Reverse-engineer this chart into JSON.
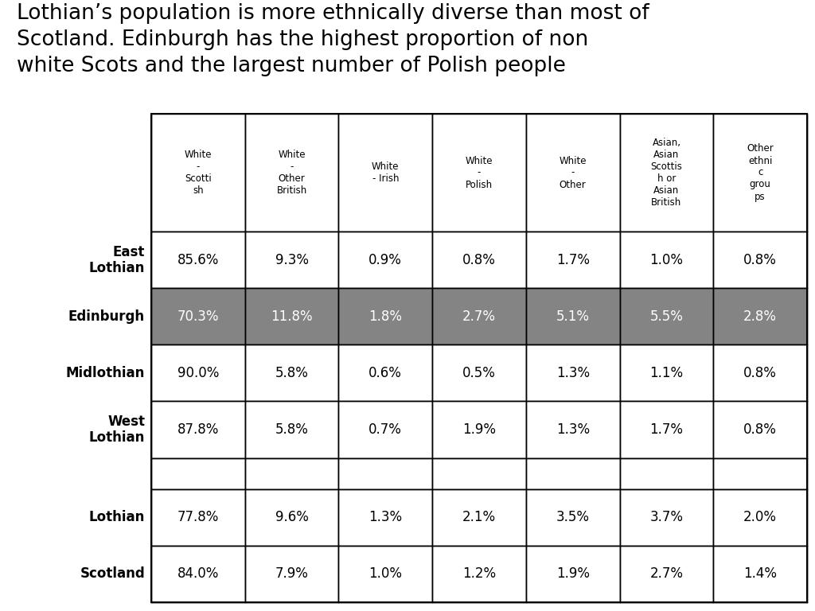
{
  "title": "Lothian’s population is more ethnically diverse than most of\nScotland. Edinburgh has the highest proportion of non\nwhite Scots and the largest number of Polish people",
  "title_bg_color": "#b3b3b3",
  "title_fontsize": 19,
  "col_headers": [
    "White\n-\nScotti\nsh",
    "White\n-\nOther\nBritish",
    "White\n- Irish",
    "White\n-\nPolish",
    "White\n-\nOther",
    "Asian,\nAsian\nScottis\nh or\nAsian\nBritish",
    "Other\nethni\nc\ngrou\nps"
  ],
  "row_labels": [
    "East\nLothian",
    "Edinburgh",
    "Midlothian",
    "West\nLothian",
    "",
    "Lothian",
    "Scotland"
  ],
  "row_label_bold": [
    true,
    true,
    true,
    true,
    false,
    true,
    true
  ],
  "data": [
    [
      "85.6%",
      "9.3%",
      "0.9%",
      "0.8%",
      "1.7%",
      "1.0%",
      "0.8%"
    ],
    [
      "70.3%",
      "11.8%",
      "1.8%",
      "2.7%",
      "5.1%",
      "5.5%",
      "2.8%"
    ],
    [
      "90.0%",
      "5.8%",
      "0.6%",
      "0.5%",
      "1.3%",
      "1.1%",
      "0.8%"
    ],
    [
      "87.8%",
      "5.8%",
      "0.7%",
      "1.9%",
      "1.3%",
      "1.7%",
      "0.8%"
    ],
    [
      "",
      "",
      "",
      "",
      "",
      "",
      ""
    ],
    [
      "77.8%",
      "9.6%",
      "1.3%",
      "2.1%",
      "3.5%",
      "3.7%",
      "2.0%"
    ],
    [
      "84.0%",
      "7.9%",
      "1.0%",
      "1.2%",
      "1.9%",
      "2.7%",
      "1.4%"
    ]
  ],
  "highlight_row": 1,
  "highlight_color": "#848484",
  "highlight_text_color": "#ffffff",
  "normal_bg": "#ffffff",
  "normal_text_color": "#000000",
  "header_bg": "#ffffff",
  "header_text_color": "#000000",
  "border_color": "#000000"
}
